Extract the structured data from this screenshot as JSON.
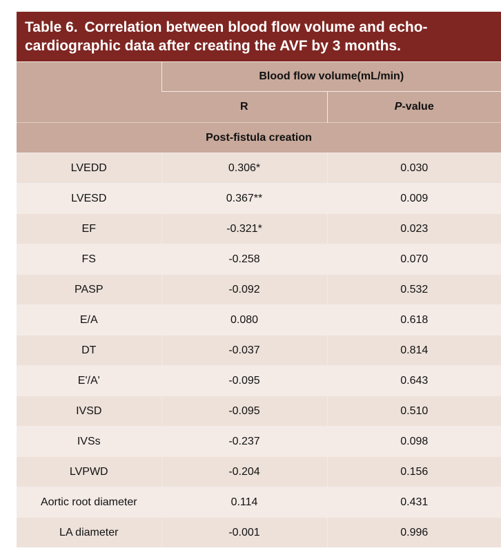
{
  "title": {
    "label": "Table 6.",
    "text": "Correlation between blood flow volume and echo-cardiographic data after creating the AVF by 3 months."
  },
  "header": {
    "group": "Blood flow volume(mL/min)",
    "col_r": "R",
    "col_p_italic": "P",
    "col_p_suffix": "-value",
    "section": "Post-fistula creation"
  },
  "rows": [
    {
      "label": "LVEDD",
      "r": "0.306*",
      "p": "0.030"
    },
    {
      "label": "LVESD",
      "r": "0.367**",
      "p": "0.009"
    },
    {
      "label": "EF",
      "r": "-0.321*",
      "p": "0.023"
    },
    {
      "label": "FS",
      "r": "-0.258",
      "p": "0.070"
    },
    {
      "label": "PASP",
      "r": "-0.092",
      "p": "0.532"
    },
    {
      "label": "E/A",
      "r": "0.080",
      "p": "0.618"
    },
    {
      "label": "DT",
      "r": "-0.037",
      "p": "0.814"
    },
    {
      "label": "E'/A'",
      "r": "-0.095",
      "p": "0.643"
    },
    {
      "label": "IVSD",
      "r": "-0.095",
      "p": "0.510"
    },
    {
      "label": "IVSs",
      "r": "-0.237",
      "p": "0.098"
    },
    {
      "label": "LVPWD",
      "r": "-0.204",
      "p": "0.156"
    },
    {
      "label": "Aortic root diameter",
      "r": "0.114",
      "p": "0.431"
    },
    {
      "label": "LA diameter",
      "r": "-0.001",
      "p": "0.996"
    }
  ],
  "colors": {
    "title_bg": "#7f2622",
    "header_bg": "#c8a99b",
    "row_a": "#ede1da",
    "row_b": "#f4ebe7"
  }
}
